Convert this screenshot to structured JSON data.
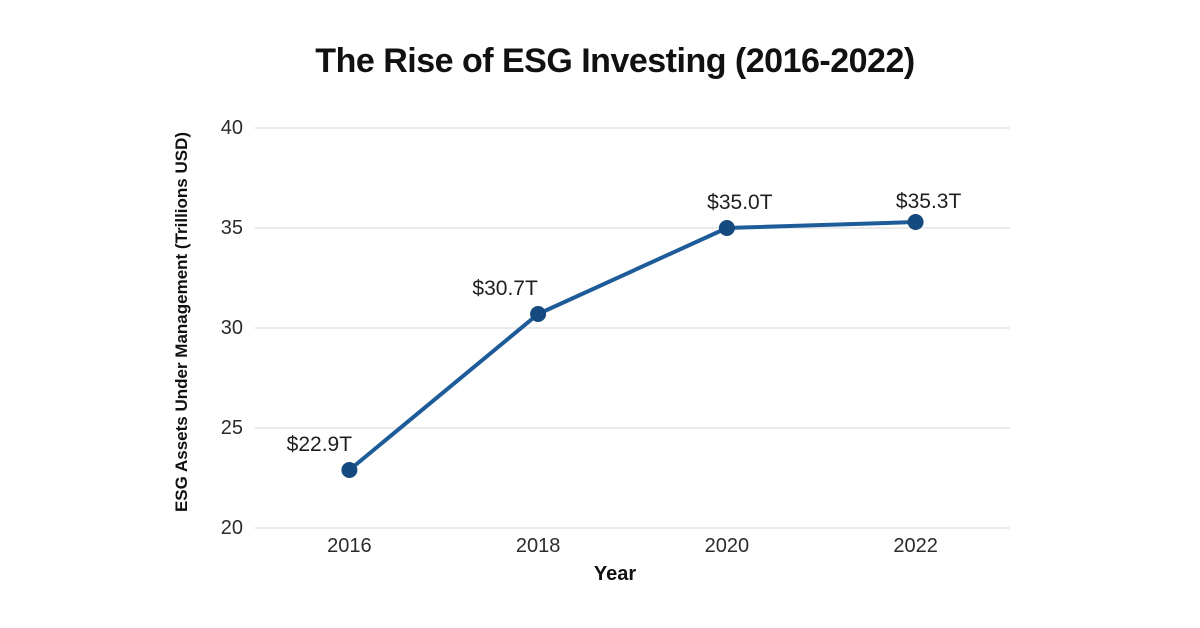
{
  "colors": {
    "line": "#1d5c99",
    "point": "#154a7e",
    "grid": "#ebebeb",
    "title": "#111111",
    "tick": "#2b2b2b",
    "data_label": "#1f1f1f",
    "background": "#ffffff"
  },
  "chart_data": {
    "type": "line",
    "title": "The Rise of ESG Investing (2016-2022)",
    "xlabel": "Year",
    "ylabel": "ESG Assets Under Management (Trillions USD)",
    "categories": [
      "2016",
      "2018",
      "2020",
      "2022"
    ],
    "series": [
      {
        "name": "ESG Assets Under Management",
        "values": [
          22.9,
          30.7,
          35.0,
          35.3
        ]
      }
    ],
    "point_labels": [
      "$22.9T",
      "$30.7T",
      "$35.0T",
      "$35.3T"
    ],
    "ylim": [
      20,
      40
    ],
    "yticks": [
      20,
      25,
      30,
      35,
      40
    ],
    "grid": "horizontal",
    "legend": "none",
    "markers": "filled-circle"
  }
}
